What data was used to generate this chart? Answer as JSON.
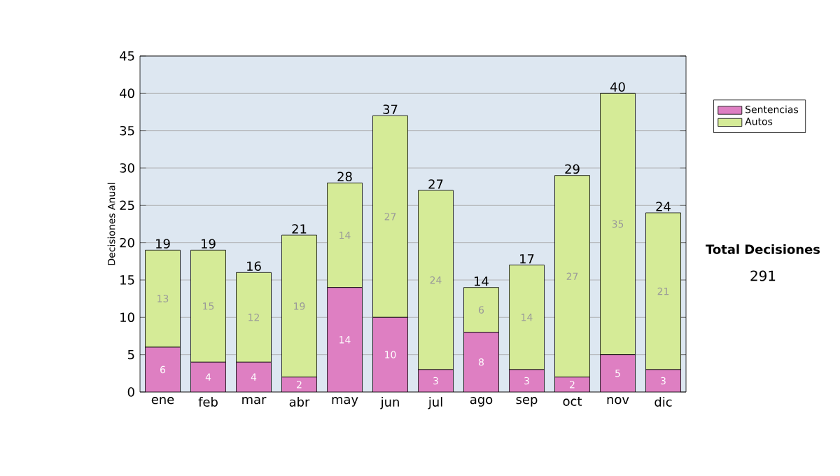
{
  "chart_data": {
    "type": "bar",
    "stacked": true,
    "ylabel": "Decisiones Anual",
    "categories": [
      "ene",
      "feb",
      "mar",
      "abr",
      "may",
      "jun",
      "jul",
      "ago",
      "sep",
      "oct",
      "nov",
      "dic"
    ],
    "series": [
      {
        "name": "Sentencias",
        "color": "#de7fc2",
        "values": [
          6,
          4,
          4,
          2,
          14,
          10,
          3,
          8,
          3,
          2,
          5,
          3
        ]
      },
      {
        "name": "Autos",
        "color": "#d5eb97",
        "values": [
          13,
          15,
          12,
          19,
          14,
          27,
          24,
          6,
          14,
          27,
          35,
          21
        ]
      }
    ],
    "totals": [
      "19",
      "19",
      "16",
      "21",
      "28",
      "37",
      "27",
      "14",
      "17",
      "29",
      "40",
      "24"
    ],
    "data_labels": true,
    "ylim": [
      0,
      45
    ],
    "yticks": [
      0,
      5,
      10,
      15,
      20,
      25,
      30,
      35,
      40,
      45
    ],
    "grid": "y",
    "legend": "right",
    "annotations": [
      "Total Decisiones",
      "291"
    ]
  }
}
